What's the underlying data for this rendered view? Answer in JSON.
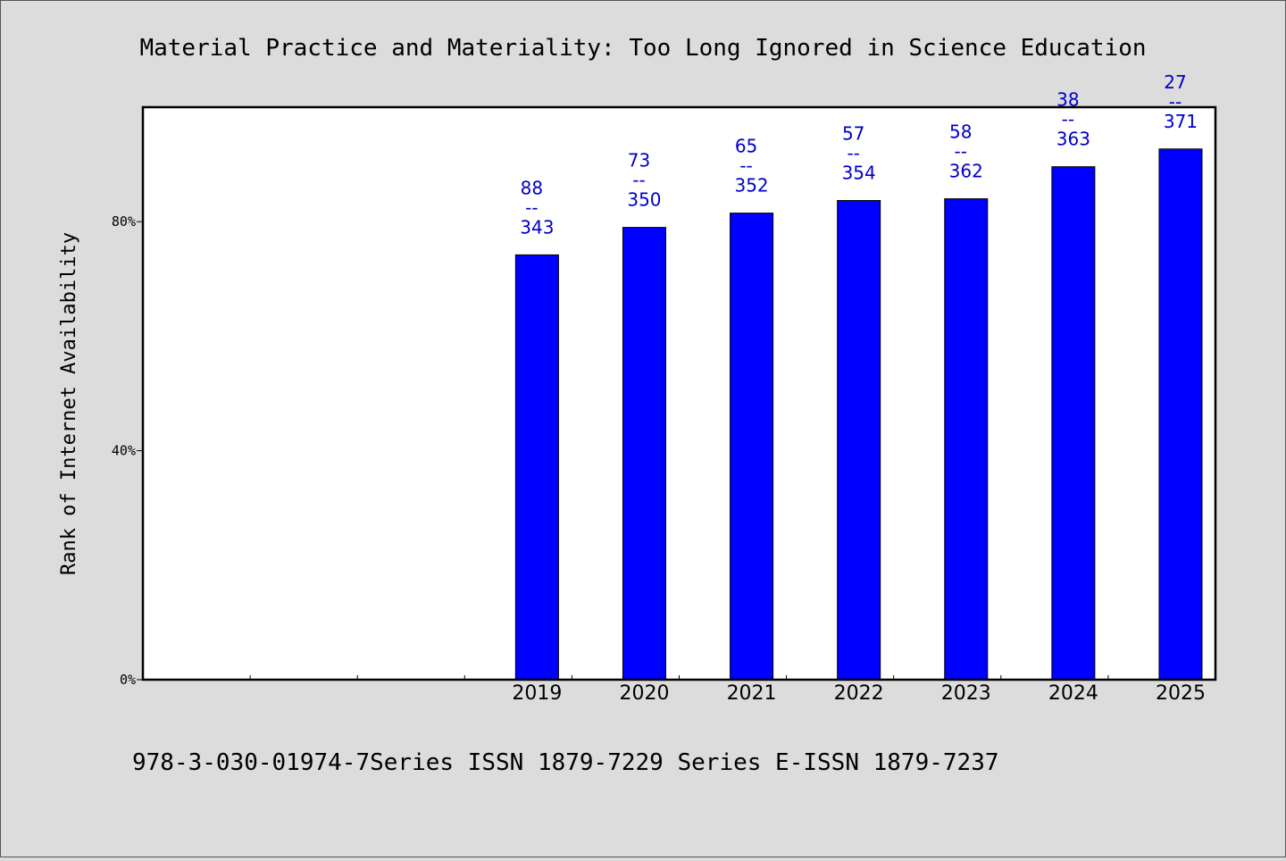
{
  "chart_data": {
    "type": "bar",
    "title": "Material Practice and Materiality: Too Long Ignored in Science Education",
    "ylabel": "Rank of Internet Availability",
    "xlabel": "",
    "categories": [
      "",
      "",
      "",
      "2019",
      "2020",
      "2021",
      "2022",
      "2023",
      "2024",
      "2025"
    ],
    "values": [
      null,
      null,
      null,
      74.2,
      79.0,
      81.5,
      83.7,
      84.0,
      89.6,
      92.7
    ],
    "labels": [
      null,
      null,
      null,
      {
        "top": "88",
        "sep": "--",
        "bottom": "343"
      },
      {
        "top": "73",
        "sep": "--",
        "bottom": "350"
      },
      {
        "top": "65",
        "sep": "--",
        "bottom": "352"
      },
      {
        "top": "57",
        "sep": "--",
        "bottom": "354"
      },
      {
        "top": "58",
        "sep": "--",
        "bottom": "362"
      },
      {
        "top": "38",
        "sep": "--",
        "bottom": "363"
      },
      {
        "top": "27",
        "sep": "--",
        "bottom": "371"
      }
    ],
    "ylim": [
      0,
      100
    ],
    "yticks": [
      0,
      40,
      80
    ],
    "ytick_labels": [
      "0%",
      "40%",
      "80%"
    ],
    "grid": false,
    "bar_color": "#0000ff",
    "label_color": "#0000cc",
    "footer": "978-3-030-01974-7Series ISSN 1879-7229 Series E-ISSN 1879-7237"
  }
}
